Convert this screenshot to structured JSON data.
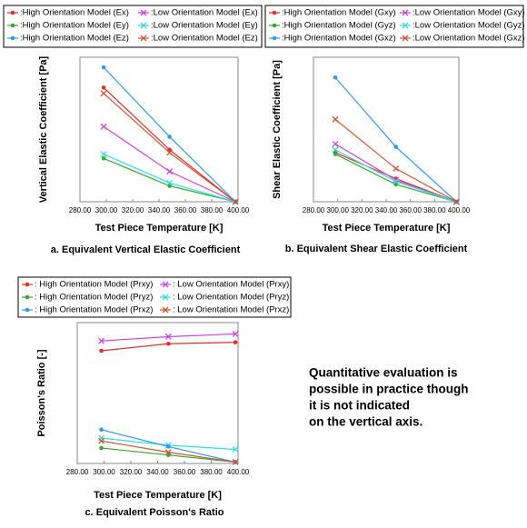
{
  "chart_data": [
    {
      "type": "line",
      "title": "a. Equivalent Vertical Elastic Coefficient",
      "x_label": "Test Piece Temperature [K]",
      "y_label": "Vertical Elastic Coefficient [Pa]",
      "x": [
        298,
        348,
        398
      ],
      "xlim": [
        280,
        400
      ],
      "ylim": [
        0,
        100
      ],
      "xticks": [
        {
          "value": 280,
          "label": "280.00"
        },
        {
          "value": 300,
          "label": "300.00"
        },
        {
          "value": 320,
          "label": "320.00"
        },
        {
          "value": 340,
          "label": "340.00"
        },
        {
          "value": 360,
          "label": "360.00"
        },
        {
          "value": 380,
          "label": "380.00"
        },
        {
          "value": 400,
          "label": "400.00"
        }
      ],
      "series": [
        {
          "name": ":High Orientation Model (Ex)",
          "color": "#e0302a",
          "marker": "circle",
          "values": [
            79,
            36,
            0
          ]
        },
        {
          "name": ":Low Orientation Model (Ex)",
          "color": "#cc44dd",
          "marker": "x",
          "values": [
            52,
            21,
            0
          ]
        },
        {
          "name": ":High Orientation Model (Ey)",
          "color": "#33aa33",
          "marker": "circle",
          "values": [
            30,
            11,
            0
          ]
        },
        {
          "name": ":Low Orientation Model (Ey)",
          "color": "#33dddd",
          "marker": "x",
          "values": [
            33,
            13,
            0
          ]
        },
        {
          "name": ":High Orientation Model (Ez)",
          "color": "#3399ee",
          "marker": "circle",
          "values": [
            93,
            45,
            0
          ]
        },
        {
          "name": ":Low Orientation Model (Ez)",
          "color": "#cc5533",
          "marker": "x",
          "values": [
            75,
            34,
            0
          ]
        }
      ]
    },
    {
      "type": "line",
      "title": "b. Equivalent Shear Elastic Coefficient",
      "x_label": "Test Piece Temperature [K]",
      "y_label": "Shear Elastic Coefficient [Pa]",
      "x": [
        298,
        348,
        398
      ],
      "xlim": [
        280,
        400
      ],
      "ylim": [
        0,
        100
      ],
      "xticks": [
        {
          "value": 280,
          "label": "280.00"
        },
        {
          "value": 300,
          "label": "300.00"
        },
        {
          "value": 320,
          "label": "320.00"
        },
        {
          "value": 340,
          "label": "340.00"
        },
        {
          "value": 360,
          "label": "360.00"
        },
        {
          "value": 380,
          "label": "380.00"
        },
        {
          "value": 400,
          "label": "400.00"
        }
      ],
      "series": [
        {
          "name": ":High Orientation Model (Gxy)",
          "color": "#e0302a",
          "marker": "circle",
          "values": [
            34,
            16,
            0
          ]
        },
        {
          "name": ":Low Orientation Model (Gxy)",
          "color": "#cc44dd",
          "marker": "x",
          "values": [
            40,
            15,
            0
          ]
        },
        {
          "name": ":High Orientation Model (Gyz)",
          "color": "#33aa33",
          "marker": "circle",
          "values": [
            33,
            12,
            0
          ]
        },
        {
          "name": ":Low Orientation Model (Gyz)",
          "color": "#33dddd",
          "marker": "x",
          "values": [
            36,
            14,
            0
          ]
        },
        {
          "name": ":High Orientation Model (Gxz)",
          "color": "#3399ee",
          "marker": "circle",
          "values": [
            86,
            38,
            0
          ]
        },
        {
          "name": ":Low Orientation Model (Gxz)",
          "color": "#cc5533",
          "marker": "x",
          "values": [
            57,
            23,
            0
          ]
        }
      ]
    },
    {
      "type": "line",
      "title": "c. Equivalent Poisson's Ratio",
      "x_label": "Test Piece Temperature [K]",
      "y_label": "Poisson's Ratio [-]",
      "x": [
        298,
        348,
        398
      ],
      "xlim": [
        280,
        400
      ],
      "ylim": [
        0,
        100
      ],
      "xticks": [
        {
          "value": 280,
          "label": "280.00"
        },
        {
          "value": 300,
          "label": "300.00"
        },
        {
          "value": 320,
          "label": "320.00"
        },
        {
          "value": 340,
          "label": "340.00"
        },
        {
          "value": 360,
          "label": "360.00"
        },
        {
          "value": 380,
          "label": "380.00"
        },
        {
          "value": 400,
          "label": "400.00"
        }
      ],
      "series": [
        {
          "name": ": High Orientation Model (Prxy)",
          "color": "#e0302a",
          "marker": "circle",
          "values": [
            80,
            85,
            86
          ]
        },
        {
          "name": ": Low Orientation Model (Prxy)",
          "color": "#cc44dd",
          "marker": "x",
          "values": [
            87,
            90,
            92
          ]
        },
        {
          "name": ": High Orientation Model (Pryz)",
          "color": "#33aa33",
          "marker": "circle",
          "values": [
            11,
            6,
            1
          ]
        },
        {
          "name": ": Low Orientation Model (Pryz)",
          "color": "#33dddd",
          "marker": "x",
          "values": [
            18,
            13,
            10
          ]
        },
        {
          "name": ": High Orientation Model (Prxz)",
          "color": "#3399ee",
          "marker": "circle",
          "values": [
            24,
            12,
            1
          ]
        },
        {
          "name": ": Low Orientation Model (Prxz)",
          "color": "#cc5533",
          "marker": "x",
          "values": [
            16,
            8,
            1
          ]
        }
      ]
    }
  ],
  "note": [
    "Quantitative evaluation is",
    "possible in practice though",
    "it is not indicated",
    "on the vertical axis."
  ]
}
